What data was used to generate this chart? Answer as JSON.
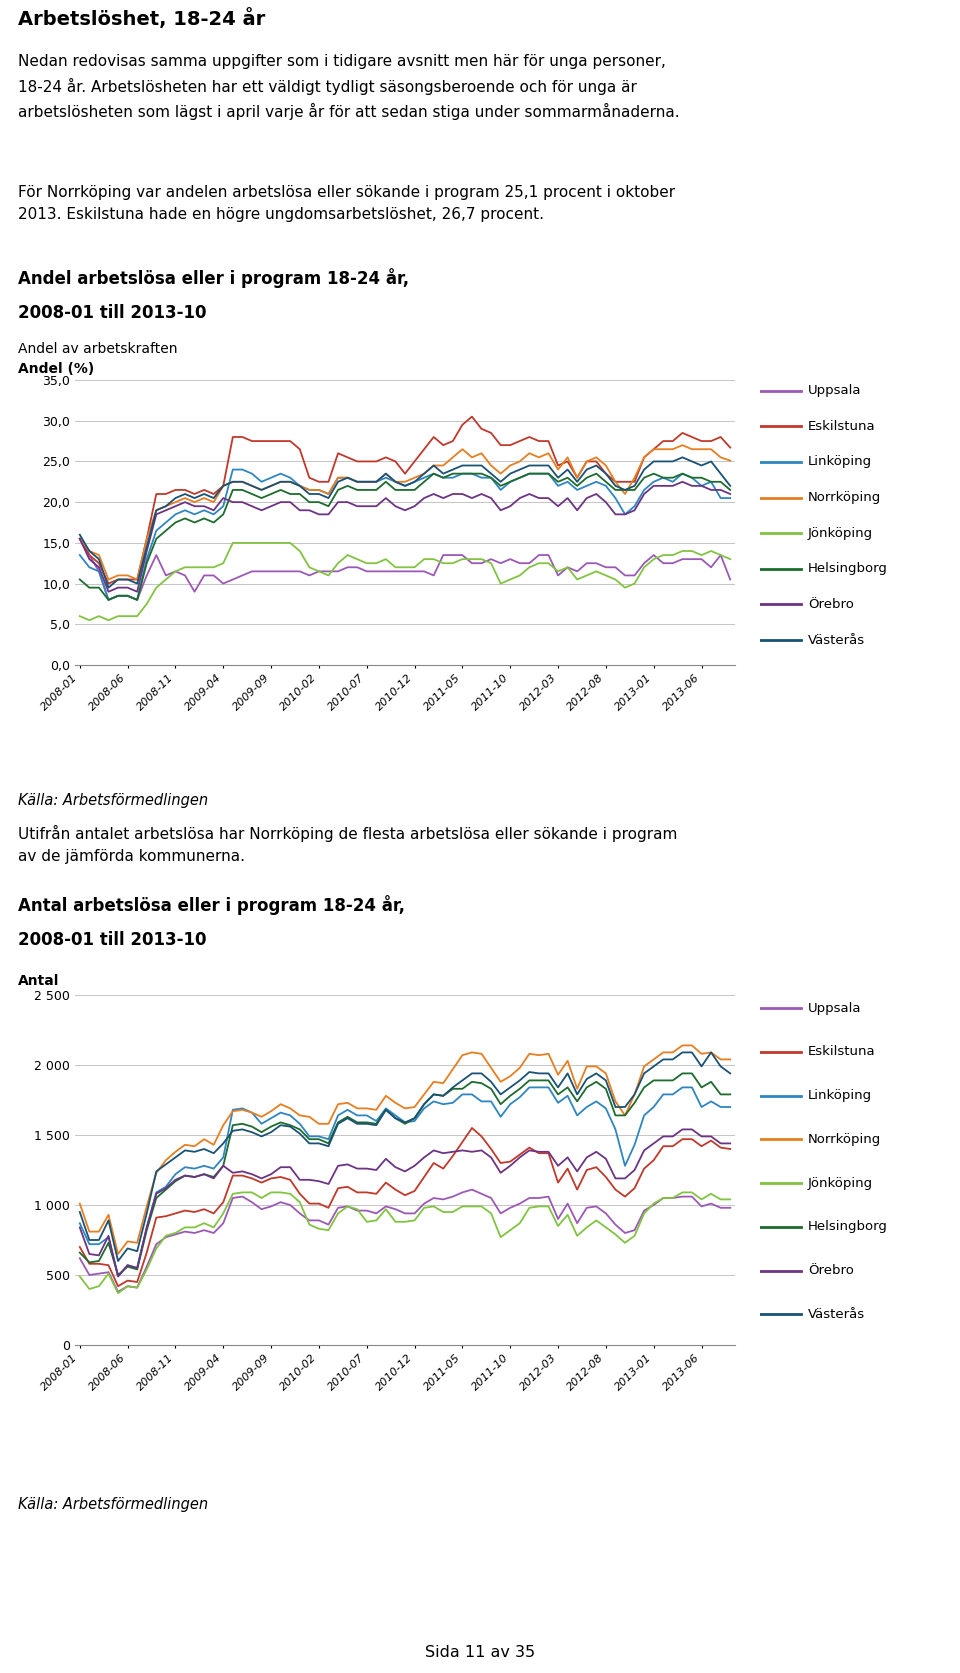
{
  "title_main": "Arbetslöshet, 18-24 år",
  "para1_line1": "Nedan redovisas samma uppgifter som i tidigare avsnitt men här för unga personer,",
  "para1_line2": "18-24 år. Arbetslösheten har ett väldigt tydligt säsongsberoende och för unga är",
  "para1_line3": "arbetslösheten som lägst i april varje år för att sedan stiga under sommarmånaderna.",
  "para2_line1": "För Norrköping var andelen arbetslösa eller sökande i program 25,1 procent i oktober",
  "para2_line2": "2013. Eskilstuna hade en högre ungdomsarbetslöshet, 26,7 procent.",
  "chart1_title_line1": "Andel arbetslösa eller i program 18-24 år,",
  "chart1_title_line2": "2008-01 till 2013-10",
  "chart1_sub1": "Andel av arbetskraften",
  "chart1_sub2": "Andel (%)",
  "chart2_title_line1": "Antal arbetslösa eller i program 18-24 år,",
  "chart2_title_line2": "2008-01 till 2013-10",
  "chart2_ylabel": "Antal",
  "middle_text_line1": "Utifrån antalet arbetslösa har Norrköping de flesta arbetslösa eller sökande i program",
  "middle_text_line2": "av de jämförda kommunerna.",
  "source": "Källa: Arbetsförmedlingen",
  "footer": "Sida 11 av 35",
  "x_labels": [
    "2008-01",
    "2008-06",
    "2008-11",
    "2009-04",
    "2009-09",
    "2010-02",
    "2010-07",
    "2010-12",
    "2011-05",
    "2011-10",
    "2012-03",
    "2012-08",
    "2013-01",
    "2013-06"
  ],
  "tick_pos": [
    0,
    5,
    10,
    15,
    20,
    25,
    30,
    35,
    40,
    45,
    50,
    55,
    60,
    65
  ],
  "cities": [
    "Uppsala",
    "Eskilstuna",
    "Linköping",
    "Norrköping",
    "Jönköping",
    "Helsingborg",
    "Örebro",
    "Västerås"
  ],
  "line_colors": {
    "Uppsala": "#9B59B6",
    "Eskilstuna": "#C0392B",
    "Linköping": "#2E86C1",
    "Norrköping": "#E67E22",
    "Jönköping": "#82C341",
    "Helsingborg": "#1E6B2E",
    "Örebro": "#6C3483",
    "Västerås": "#1A5276"
  },
  "chart1_ylim": [
    0,
    35
  ],
  "chart1_yticks": [
    0,
    5,
    10,
    15,
    20,
    25,
    30,
    35
  ],
  "chart1_ytick_labels": [
    "0,0",
    "5,0",
    "10,0",
    "15,0",
    "20,0",
    "25,0",
    "30,0",
    "35,0"
  ],
  "chart2_ylim": [
    0,
    2500
  ],
  "chart2_yticks": [
    0,
    500,
    1000,
    1500,
    2000,
    2500
  ],
  "chart2_ytick_labels": [
    "0",
    "500",
    "1 000",
    "1 500",
    "2 000",
    "2 500"
  ],
  "chart1_data": {
    "Uppsala": [
      15.5,
      13.5,
      11.5,
      8.0,
      8.5,
      8.5,
      8.0,
      11.0,
      13.5,
      11.0,
      11.5,
      11.0,
      9.0,
      11.0,
      11.0,
      10.0,
      10.5,
      11.0,
      11.5,
      11.5,
      11.5,
      11.5,
      11.5,
      11.5,
      11.0,
      11.5,
      11.5,
      11.5,
      12.0,
      12.0,
      11.5,
      11.5,
      11.5,
      11.5,
      11.5,
      11.5,
      11.5,
      11.0,
      13.5,
      13.5,
      13.5,
      12.5,
      12.5,
      13.0,
      12.5,
      13.0,
      12.5,
      12.5,
      13.5,
      13.5,
      11.0,
      12.0,
      11.5,
      12.5,
      12.5,
      12.0,
      12.0,
      11.0,
      11.0,
      12.5,
      13.5,
      12.5,
      12.5,
      13.0,
      13.0,
      13.0,
      12.0,
      13.5,
      10.5
    ],
    "Eskilstuna": [
      15.5,
      13.5,
      12.5,
      10.0,
      10.5,
      10.5,
      10.5,
      15.5,
      21.0,
      21.0,
      21.5,
      21.5,
      21.0,
      21.5,
      21.0,
      22.0,
      28.0,
      28.0,
      27.5,
      27.5,
      27.5,
      27.5,
      27.5,
      26.5,
      23.0,
      22.5,
      22.5,
      26.0,
      25.5,
      25.0,
      25.0,
      25.0,
      25.5,
      25.0,
      23.5,
      25.0,
      26.5,
      28.0,
      27.0,
      27.5,
      29.5,
      30.5,
      29.0,
      28.5,
      27.0,
      27.0,
      27.5,
      28.0,
      27.5,
      27.5,
      24.5,
      25.0,
      23.0,
      25.0,
      25.0,
      23.5,
      22.5,
      22.5,
      22.5,
      25.5,
      26.5,
      27.5,
      27.5,
      28.5,
      28.0,
      27.5,
      27.5,
      28.0,
      26.7
    ],
    "Linköping": [
      13.5,
      12.0,
      11.5,
      8.0,
      8.5,
      8.5,
      8.0,
      13.0,
      16.5,
      17.5,
      18.5,
      19.0,
      18.5,
      19.0,
      18.5,
      19.5,
      24.0,
      24.0,
      23.5,
      22.5,
      23.0,
      23.5,
      23.0,
      22.0,
      21.5,
      21.5,
      21.0,
      23.0,
      23.0,
      22.5,
      22.5,
      22.5,
      23.0,
      22.5,
      22.0,
      22.5,
      23.0,
      23.5,
      23.0,
      23.0,
      23.5,
      23.5,
      23.0,
      23.0,
      21.5,
      22.5,
      23.0,
      23.5,
      23.5,
      23.5,
      22.0,
      22.5,
      21.5,
      22.0,
      22.5,
      22.0,
      20.5,
      18.5,
      19.5,
      21.5,
      22.5,
      23.0,
      22.5,
      23.5,
      23.0,
      22.0,
      22.5,
      20.5,
      20.5
    ],
    "Norrköping": [
      15.5,
      14.0,
      13.5,
      10.5,
      11.0,
      11.0,
      10.5,
      15.5,
      19.0,
      19.5,
      20.0,
      20.5,
      20.0,
      20.5,
      20.0,
      22.0,
      22.5,
      22.5,
      22.0,
      21.5,
      22.0,
      22.5,
      22.5,
      22.0,
      21.5,
      21.5,
      21.0,
      23.0,
      23.0,
      22.5,
      22.5,
      22.5,
      23.5,
      22.5,
      22.5,
      23.0,
      23.5,
      24.5,
      24.5,
      25.5,
      26.5,
      25.5,
      26.0,
      24.5,
      23.5,
      24.5,
      25.0,
      26.0,
      25.5,
      26.0,
      24.0,
      25.5,
      23.0,
      25.0,
      25.5,
      24.5,
      22.5,
      21.0,
      23.0,
      25.5,
      26.5,
      26.5,
      26.5,
      27.0,
      26.5,
      26.5,
      26.5,
      25.5,
      25.1
    ],
    "Jönköping": [
      6.0,
      5.5,
      6.0,
      5.5,
      6.0,
      6.0,
      6.0,
      7.5,
      9.5,
      10.5,
      11.5,
      12.0,
      12.0,
      12.0,
      12.0,
      12.5,
      15.0,
      15.0,
      15.0,
      15.0,
      15.0,
      15.0,
      15.0,
      14.0,
      12.0,
      11.5,
      11.0,
      12.5,
      13.5,
      13.0,
      12.5,
      12.5,
      13.0,
      12.0,
      12.0,
      12.0,
      13.0,
      13.0,
      12.5,
      12.5,
      13.0,
      13.0,
      13.0,
      12.5,
      10.0,
      10.5,
      11.0,
      12.0,
      12.5,
      12.5,
      11.5,
      12.0,
      10.5,
      11.0,
      11.5,
      11.0,
      10.5,
      9.5,
      10.0,
      12.0,
      13.0,
      13.5,
      13.5,
      14.0,
      14.0,
      13.5,
      14.0,
      13.5,
      13.0
    ],
    "Helsingborg": [
      10.5,
      9.5,
      9.5,
      8.0,
      8.5,
      8.5,
      8.0,
      12.5,
      15.5,
      16.5,
      17.5,
      18.0,
      17.5,
      18.0,
      17.5,
      18.5,
      21.5,
      21.5,
      21.0,
      20.5,
      21.0,
      21.5,
      21.0,
      21.0,
      20.0,
      20.0,
      19.5,
      21.5,
      22.0,
      21.5,
      21.5,
      21.5,
      22.5,
      21.5,
      21.5,
      21.5,
      22.5,
      23.5,
      23.0,
      23.5,
      23.5,
      23.5,
      23.5,
      23.0,
      22.0,
      22.5,
      23.0,
      23.5,
      23.5,
      23.5,
      22.5,
      23.0,
      22.0,
      23.0,
      23.5,
      22.5,
      21.5,
      21.5,
      21.5,
      23.0,
      23.5,
      23.0,
      23.0,
      23.5,
      23.0,
      23.0,
      22.5,
      22.5,
      21.5
    ],
    "Örebro": [
      15.5,
      13.0,
      12.0,
      9.0,
      9.5,
      9.5,
      9.0,
      14.0,
      18.5,
      19.0,
      19.5,
      20.0,
      19.5,
      19.5,
      19.0,
      20.5,
      20.0,
      20.0,
      19.5,
      19.0,
      19.5,
      20.0,
      20.0,
      19.0,
      19.0,
      18.5,
      18.5,
      20.0,
      20.0,
      19.5,
      19.5,
      19.5,
      20.5,
      19.5,
      19.0,
      19.5,
      20.5,
      21.0,
      20.5,
      21.0,
      21.0,
      20.5,
      21.0,
      20.5,
      19.0,
      19.5,
      20.5,
      21.0,
      20.5,
      20.5,
      19.5,
      20.5,
      19.0,
      20.5,
      21.0,
      20.0,
      18.5,
      18.5,
      19.0,
      21.0,
      22.0,
      22.0,
      22.0,
      22.5,
      22.0,
      22.0,
      21.5,
      21.5,
      21.0
    ],
    "Västerås": [
      16.0,
      14.0,
      13.0,
      9.5,
      10.5,
      10.5,
      10.0,
      14.5,
      19.0,
      19.5,
      20.5,
      21.0,
      20.5,
      21.0,
      20.5,
      22.0,
      22.5,
      22.5,
      22.0,
      21.5,
      22.0,
      22.5,
      22.5,
      22.0,
      21.0,
      21.0,
      20.5,
      22.5,
      23.0,
      22.5,
      22.5,
      22.5,
      23.5,
      22.5,
      22.0,
      22.5,
      23.5,
      24.5,
      23.5,
      24.0,
      24.5,
      24.5,
      24.5,
      23.5,
      22.5,
      23.5,
      24.0,
      24.5,
      24.5,
      24.5,
      23.0,
      24.0,
      22.5,
      24.0,
      24.5,
      23.5,
      22.0,
      21.5,
      22.0,
      24.0,
      25.0,
      25.0,
      25.0,
      25.5,
      25.0,
      24.5,
      25.0,
      23.5,
      22.0
    ]
  },
  "chart2_data": {
    "Uppsala": [
      620,
      500,
      510,
      520,
      380,
      420,
      410,
      560,
      720,
      770,
      790,
      810,
      800,
      820,
      800,
      870,
      1050,
      1060,
      1020,
      970,
      990,
      1020,
      1000,
      940,
      890,
      890,
      860,
      980,
      990,
      960,
      960,
      940,
      990,
      970,
      940,
      940,
      1010,
      1050,
      1040,
      1060,
      1090,
      1110,
      1080,
      1050,
      940,
      980,
      1010,
      1050,
      1050,
      1060,
      900,
      1010,
      870,
      980,
      990,
      940,
      860,
      800,
      820,
      960,
      1000,
      1050,
      1050,
      1060,
      1060,
      990,
      1010,
      980,
      980
    ],
    "Eskilstuna": [
      700,
      580,
      580,
      570,
      420,
      460,
      450,
      660,
      910,
      920,
      940,
      960,
      950,
      970,
      940,
      1020,
      1210,
      1210,
      1190,
      1160,
      1190,
      1200,
      1180,
      1080,
      1010,
      1010,
      980,
      1120,
      1130,
      1090,
      1090,
      1080,
      1160,
      1110,
      1070,
      1100,
      1200,
      1300,
      1260,
      1350,
      1450,
      1550,
      1490,
      1400,
      1300,
      1310,
      1360,
      1410,
      1370,
      1370,
      1160,
      1260,
      1110,
      1250,
      1270,
      1200,
      1110,
      1060,
      1120,
      1260,
      1320,
      1420,
      1420,
      1470,
      1470,
      1420,
      1460,
      1410,
      1400
    ],
    "Linköping": [
      870,
      720,
      720,
      770,
      490,
      570,
      550,
      840,
      1090,
      1130,
      1220,
      1270,
      1260,
      1280,
      1260,
      1340,
      1680,
      1690,
      1660,
      1580,
      1620,
      1660,
      1640,
      1580,
      1490,
      1490,
      1470,
      1640,
      1680,
      1640,
      1640,
      1600,
      1690,
      1640,
      1590,
      1600,
      1690,
      1740,
      1720,
      1730,
      1790,
      1790,
      1740,
      1740,
      1630,
      1720,
      1770,
      1840,
      1840,
      1840,
      1730,
      1780,
      1640,
      1700,
      1740,
      1690,
      1540,
      1280,
      1430,
      1640,
      1700,
      1790,
      1790,
      1840,
      1840,
      1700,
      1740,
      1700,
      1700
    ],
    "Norrköping": [
      1010,
      810,
      810,
      930,
      650,
      740,
      730,
      990,
      1230,
      1320,
      1380,
      1430,
      1420,
      1470,
      1430,
      1570,
      1670,
      1680,
      1660,
      1630,
      1670,
      1720,
      1690,
      1640,
      1630,
      1580,
      1580,
      1720,
      1730,
      1690,
      1690,
      1680,
      1780,
      1730,
      1690,
      1700,
      1790,
      1880,
      1870,
      1970,
      2070,
      2090,
      2080,
      1980,
      1880,
      1920,
      1980,
      2080,
      2070,
      2080,
      1930,
      2030,
      1830,
      1990,
      1990,
      1940,
      1740,
      1640,
      1790,
      1990,
      2040,
      2090,
      2090,
      2140,
      2140,
      2080,
      2090,
      2040,
      2040
    ],
    "Jönköping": [
      490,
      400,
      420,
      510,
      370,
      420,
      410,
      540,
      690,
      780,
      800,
      840,
      840,
      870,
      840,
      940,
      1080,
      1090,
      1090,
      1050,
      1090,
      1090,
      1080,
      1020,
      860,
      830,
      820,
      940,
      990,
      970,
      880,
      890,
      970,
      880,
      880,
      890,
      980,
      990,
      950,
      950,
      990,
      990,
      990,
      940,
      770,
      820,
      870,
      980,
      990,
      990,
      850,
      930,
      780,
      840,
      890,
      840,
      790,
      730,
      780,
      940,
      1010,
      1050,
      1050,
      1090,
      1090,
      1040,
      1080,
      1040,
      1040
    ],
    "Helsingborg": [
      660,
      590,
      600,
      730,
      500,
      560,
      540,
      820,
      1050,
      1110,
      1170,
      1210,
      1200,
      1220,
      1200,
      1280,
      1570,
      1580,
      1560,
      1520,
      1560,
      1590,
      1570,
      1540,
      1470,
      1470,
      1440,
      1590,
      1630,
      1590,
      1590,
      1580,
      1680,
      1620,
      1580,
      1620,
      1720,
      1790,
      1780,
      1830,
      1830,
      1880,
      1870,
      1830,
      1720,
      1780,
      1830,
      1890,
      1890,
      1890,
      1790,
      1840,
      1740,
      1840,
      1880,
      1830,
      1640,
      1640,
      1730,
      1840,
      1890,
      1890,
      1890,
      1940,
      1940,
      1840,
      1880,
      1790,
      1790
    ],
    "Örebro": [
      840,
      650,
      640,
      780,
      490,
      570,
      550,
      840,
      1080,
      1120,
      1180,
      1210,
      1200,
      1220,
      1190,
      1280,
      1230,
      1240,
      1220,
      1190,
      1220,
      1270,
      1270,
      1180,
      1180,
      1170,
      1150,
      1280,
      1290,
      1260,
      1260,
      1250,
      1330,
      1270,
      1240,
      1280,
      1340,
      1390,
      1370,
      1380,
      1390,
      1380,
      1390,
      1340,
      1230,
      1280,
      1340,
      1390,
      1380,
      1380,
      1280,
      1340,
      1240,
      1340,
      1380,
      1330,
      1190,
      1190,
      1250,
      1390,
      1440,
      1490,
      1490,
      1540,
      1540,
      1490,
      1490,
      1440,
      1440
    ],
    "Västerås": [
      950,
      750,
      750,
      890,
      600,
      690,
      670,
      940,
      1240,
      1290,
      1340,
      1390,
      1380,
      1400,
      1370,
      1440,
      1530,
      1540,
      1520,
      1490,
      1520,
      1570,
      1560,
      1510,
      1440,
      1440,
      1420,
      1580,
      1620,
      1580,
      1580,
      1570,
      1680,
      1620,
      1590,
      1620,
      1720,
      1790,
      1780,
      1840,
      1890,
      1940,
      1940,
      1880,
      1790,
      1840,
      1890,
      1950,
      1940,
      1940,
      1840,
      1940,
      1790,
      1900,
      1940,
      1890,
      1700,
      1700,
      1790,
      1940,
      1990,
      2040,
      2040,
      2090,
      2090,
      1990,
      2090,
      1990,
      1940
    ]
  }
}
